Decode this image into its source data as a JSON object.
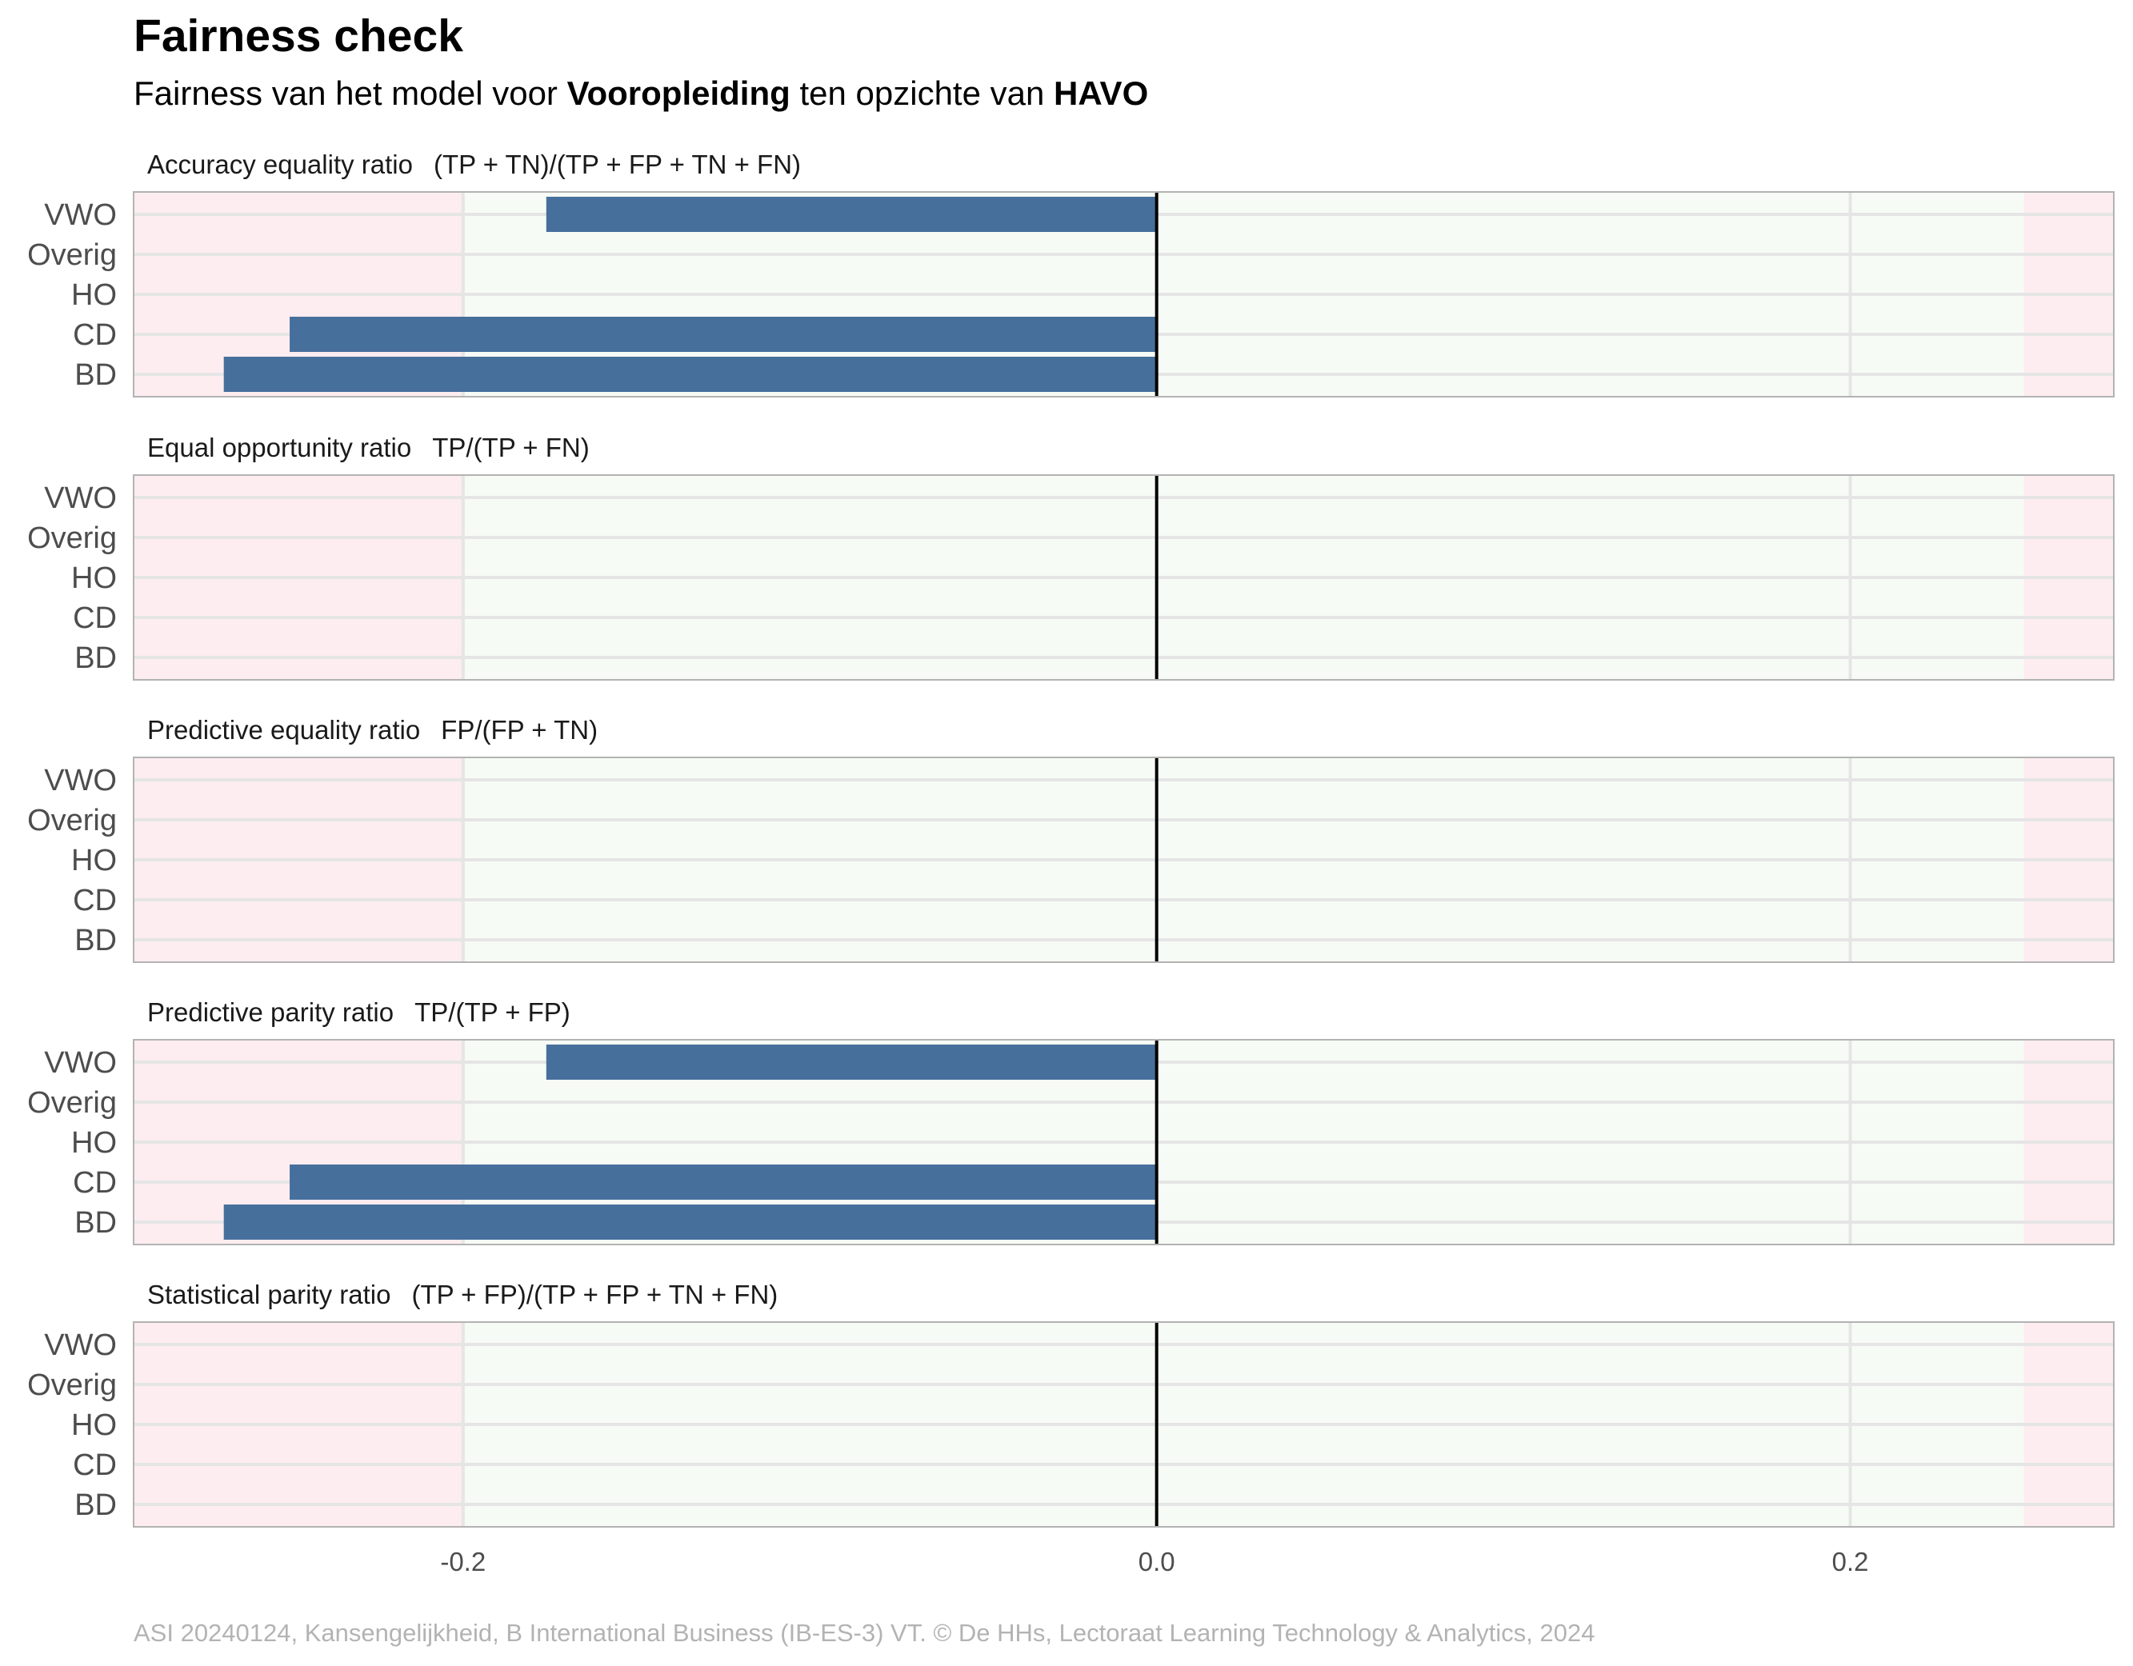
{
  "header": {
    "title": "Fairness check",
    "subtitle_prefix": "Fairness van het model voor ",
    "subtitle_variable": "Vooropleiding",
    "subtitle_middle": " ten opzichte van ",
    "subtitle_reference": "HAVO"
  },
  "caption": "ASI 20240124, Kansengelijkheid, B International Business (IB-ES-3) VT. © De HHs, Lectoraat Learning Technology & Analytics, 2024",
  "colors": {
    "bar": "#476f9c",
    "fair_zone": "#f7fbf5",
    "unfair_zone": "#fdedf0",
    "zero_line": "#000000",
    "panel_border": "#b3b3b3",
    "grid": "#e5e5e5"
  },
  "chart_data": {
    "type": "bar",
    "orientation": "horizontal",
    "categories": [
      "VWO",
      "Overig",
      "HO",
      "CD",
      "BD"
    ],
    "xlim": [
      -0.295,
      0.276
    ],
    "x_ticks": [
      -0.2,
      0.0,
      0.2
    ],
    "x_tick_labels": [
      "-0.2",
      "0.0",
      "0.2"
    ],
    "fair_range": [
      -0.2,
      0.25
    ],
    "grid": true,
    "panels": [
      {
        "title": "Accuracy equality ratio",
        "formula": "(TP + TN)/(TP + FP + TN + FN)",
        "values": {
          "VWO": -0.176,
          "Overig": null,
          "HO": null,
          "CD": -0.25,
          "BD": -0.269
        }
      },
      {
        "title": "Equal opportunity ratio",
        "formula": "TP/(TP + FN)",
        "values": {
          "VWO": null,
          "Overig": null,
          "HO": null,
          "CD": null,
          "BD": null
        }
      },
      {
        "title": "Predictive equality ratio",
        "formula": "FP/(FP + TN)",
        "values": {
          "VWO": null,
          "Overig": null,
          "HO": null,
          "CD": null,
          "BD": null
        }
      },
      {
        "title": "Predictive parity ratio",
        "formula": "TP/(TP + FP)",
        "values": {
          "VWO": -0.176,
          "Overig": null,
          "HO": null,
          "CD": -0.25,
          "BD": -0.269
        }
      },
      {
        "title": "Statistical parity ratio",
        "formula": "(TP + FP)/(TP + FP + TN + FN)",
        "values": {
          "VWO": null,
          "Overig": null,
          "HO": null,
          "CD": null,
          "BD": null
        }
      }
    ]
  }
}
